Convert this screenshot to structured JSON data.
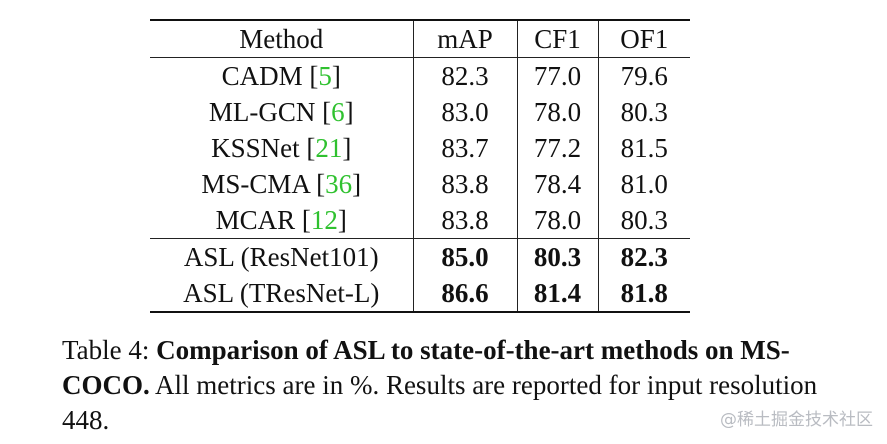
{
  "table": {
    "header": [
      "Method",
      "mAP",
      "CF1",
      "OF1"
    ],
    "rows": [
      [
        "CADM [5]",
        "82.3",
        "77.0",
        "79.6"
      ],
      [
        "ML-GCN [6]",
        "83.0",
        "78.0",
        "80.3"
      ],
      [
        "KSSNet [21]",
        "83.7",
        "77.2",
        "81.5"
      ],
      [
        "MS-CMA [36]",
        "83.8",
        "78.4",
        "81.0"
      ],
      [
        "MCAR [12]",
        "83.8",
        "78.0",
        "80.3"
      ]
    ],
    "asl_rows": [
      [
        "ASL (ResNet101)",
        "85.0",
        "80.3",
        "82.3"
      ],
      [
        "ASL (TResNet-L)",
        "86.6",
        "81.4",
        "81.8"
      ]
    ]
  },
  "caption": {
    "label": "Table 4:",
    "bold": "Comparison of ASL to state-of-the-art methods on MS-COCO.",
    "text": "All metrics are in %. Results are reported for input resolution 448."
  },
  "watermark": "@稀土掘金技术社区"
}
